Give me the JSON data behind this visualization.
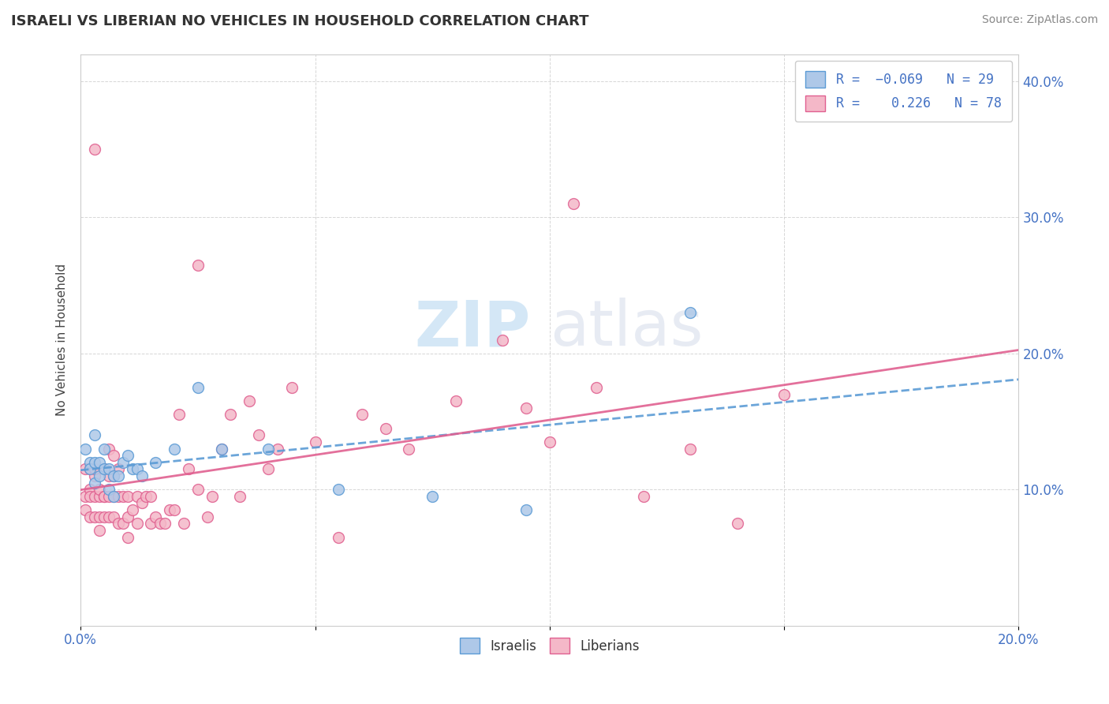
{
  "title": "ISRAELI VS LIBERIAN NO VEHICLES IN HOUSEHOLD CORRELATION CHART",
  "source": "Source: ZipAtlas.com",
  "ylabel": "No Vehicles in Household",
  "xlim": [
    0.0,
    0.2
  ],
  "ylim": [
    0.0,
    0.42
  ],
  "xticks": [
    0.0,
    0.05,
    0.1,
    0.15,
    0.2
  ],
  "xticklabels": [
    "0.0%",
    "",
    "",
    "",
    "20.0%"
  ],
  "yticks": [
    0.0,
    0.1,
    0.2,
    0.3,
    0.4
  ],
  "yticklabels": [
    "",
    "10.0%",
    "20.0%",
    "30.0%",
    "40.0%"
  ],
  "israeli_R": -0.069,
  "israeli_N": 29,
  "liberian_R": 0.226,
  "liberian_N": 78,
  "israeli_color": "#aec8e8",
  "liberian_color": "#f4b8c8",
  "israeli_edge_color": "#5b9bd5",
  "liberian_edge_color": "#e06090",
  "israeli_line_color": "#5b9bd5",
  "liberian_line_color": "#e06090",
  "watermark_color": "#d4e8f5",
  "israeli_points_x": [
    0.001,
    0.002,
    0.002,
    0.003,
    0.003,
    0.003,
    0.004,
    0.004,
    0.005,
    0.005,
    0.006,
    0.006,
    0.007,
    0.007,
    0.008,
    0.009,
    0.01,
    0.011,
    0.012,
    0.013,
    0.016,
    0.02,
    0.025,
    0.03,
    0.04,
    0.055,
    0.075,
    0.095,
    0.13
  ],
  "israeli_points_y": [
    0.13,
    0.12,
    0.115,
    0.14,
    0.12,
    0.105,
    0.12,
    0.11,
    0.13,
    0.115,
    0.115,
    0.1,
    0.11,
    0.095,
    0.11,
    0.12,
    0.125,
    0.115,
    0.115,
    0.11,
    0.12,
    0.13,
    0.175,
    0.13,
    0.13,
    0.1,
    0.095,
    0.085,
    0.23
  ],
  "liberian_points_x": [
    0.001,
    0.001,
    0.001,
    0.002,
    0.002,
    0.002,
    0.002,
    0.003,
    0.003,
    0.003,
    0.003,
    0.003,
    0.004,
    0.004,
    0.004,
    0.004,
    0.005,
    0.005,
    0.005,
    0.005,
    0.006,
    0.006,
    0.006,
    0.006,
    0.007,
    0.007,
    0.007,
    0.007,
    0.008,
    0.008,
    0.008,
    0.009,
    0.009,
    0.01,
    0.01,
    0.01,
    0.011,
    0.012,
    0.012,
    0.013,
    0.014,
    0.015,
    0.015,
    0.016,
    0.017,
    0.018,
    0.019,
    0.02,
    0.021,
    0.022,
    0.023,
    0.025,
    0.025,
    0.027,
    0.028,
    0.03,
    0.032,
    0.034,
    0.036,
    0.038,
    0.04,
    0.042,
    0.045,
    0.05,
    0.055,
    0.06,
    0.065,
    0.07,
    0.08,
    0.09,
    0.095,
    0.1,
    0.105,
    0.11,
    0.12,
    0.13,
    0.14,
    0.15
  ],
  "liberian_points_y": [
    0.095,
    0.115,
    0.085,
    0.08,
    0.1,
    0.115,
    0.095,
    0.095,
    0.11,
    0.08,
    0.35,
    0.115,
    0.095,
    0.08,
    0.1,
    0.07,
    0.095,
    0.115,
    0.08,
    0.095,
    0.13,
    0.095,
    0.08,
    0.11,
    0.095,
    0.08,
    0.11,
    0.125,
    0.095,
    0.115,
    0.075,
    0.095,
    0.075,
    0.08,
    0.095,
    0.065,
    0.085,
    0.095,
    0.075,
    0.09,
    0.095,
    0.095,
    0.075,
    0.08,
    0.075,
    0.075,
    0.085,
    0.085,
    0.155,
    0.075,
    0.115,
    0.1,
    0.265,
    0.08,
    0.095,
    0.13,
    0.155,
    0.095,
    0.165,
    0.14,
    0.115,
    0.13,
    0.175,
    0.135,
    0.065,
    0.155,
    0.145,
    0.13,
    0.165,
    0.21,
    0.16,
    0.135,
    0.31,
    0.175,
    0.095,
    0.13,
    0.075,
    0.17
  ]
}
